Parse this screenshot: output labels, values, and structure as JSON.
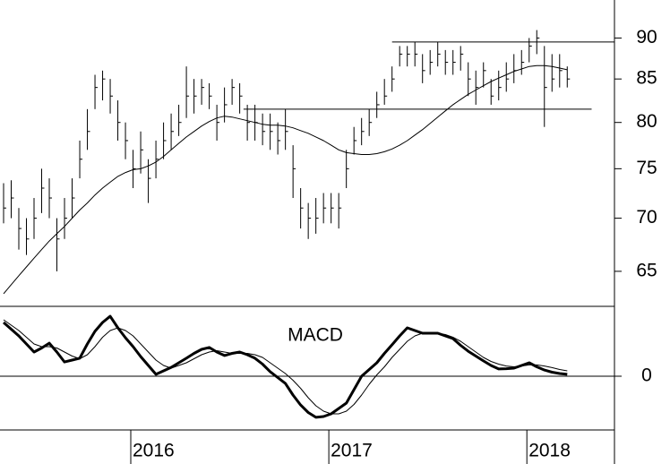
{
  "chart_data": [
    {
      "type": "ohlc",
      "xlim": [
        -0.47,
        80.2
      ],
      "ylim": [
        61.9,
        94.9
      ],
      "log": true,
      "yticks": [
        65,
        70,
        75,
        80,
        85,
        90
      ],
      "color": "#000000",
      "high": [
        73.5,
        73.8,
        71,
        70,
        72,
        75,
        74,
        70,
        72,
        74,
        78,
        81.5,
        85.5,
        86,
        85,
        82.5,
        80,
        77,
        79,
        76,
        78,
        80,
        81,
        82,
        86.5,
        85,
        85,
        84.5,
        82,
        84,
        85,
        84.5,
        82,
        82,
        81,
        81,
        80,
        81.5,
        77.5,
        73,
        71.5,
        72,
        72.5,
        72.5,
        72.5,
        77,
        79.5,
        80.5,
        81.5,
        83.5,
        85,
        86.5,
        89,
        89,
        89.5,
        88,
        88.5,
        89.5,
        88.5,
        88.5,
        89,
        87,
        86,
        87,
        85,
        86,
        87,
        88,
        88.5,
        90,
        91,
        89,
        88,
        88,
        86.5
      ],
      "low": [
        69.5,
        70,
        67,
        66.5,
        68,
        70.5,
        70,
        65,
        68,
        70,
        74,
        77,
        81.5,
        82.5,
        81,
        78,
        76,
        73,
        74.5,
        71.5,
        74,
        76,
        77,
        78.5,
        80.5,
        81,
        82,
        81.5,
        78,
        80,
        82,
        81,
        78,
        78,
        77.5,
        77,
        76.5,
        77,
        72,
        69,
        68,
        68.5,
        69.5,
        69.5,
        69,
        73,
        76.5,
        77.5,
        78.5,
        80.5,
        82,
        83.5,
        86.5,
        86.5,
        86.5,
        84.5,
        85.5,
        86.5,
        85.5,
        85.5,
        86,
        83,
        82,
        84,
        82,
        82.5,
        83.5,
        84.5,
        85.5,
        87,
        88,
        79.5,
        83.5,
        84,
        84
      ],
      "close": [
        71,
        72,
        69,
        68,
        70,
        73,
        72,
        68,
        70,
        72,
        76,
        79,
        84,
        85,
        83,
        80,
        78,
        75,
        77,
        74,
        76,
        78,
        79,
        80,
        83,
        83,
        84,
        83,
        80,
        82,
        84,
        83,
        80,
        80,
        79,
        79,
        78,
        79,
        75,
        71,
        70,
        70,
        71,
        71,
        71,
        75,
        78,
        79,
        80,
        82,
        83,
        85,
        88,
        88,
        88,
        86,
        87,
        88,
        87,
        87,
        88,
        85,
        84,
        86,
        83,
        84,
        85,
        86,
        87,
        89,
        90,
        84,
        85,
        86,
        85
      ],
      "ma": {
        "color": "#000000",
        "values": [
          63,
          63.8,
          64.6,
          65.4,
          66.2,
          67,
          67.8,
          68.5,
          69.2,
          70,
          70.8,
          71.5,
          72.3,
          73,
          73.6,
          74.2,
          74.6,
          74.9,
          75,
          75.3,
          75.7,
          76.3,
          77,
          77.7,
          78.4,
          79,
          79.6,
          80.1,
          80.5,
          80.7,
          80.6,
          80.4,
          80.2,
          80,
          79.8,
          79.7,
          79.7,
          79.6,
          79.4,
          79.1,
          78.8,
          78.4,
          78,
          77.5,
          77,
          76.7,
          76.6,
          76.5,
          76.5,
          76.6,
          76.8,
          77.1,
          77.5,
          78,
          78.6,
          79.2,
          79.9,
          80.6,
          81.3,
          82,
          82.6,
          83.2,
          83.7,
          84.2,
          84.7,
          85.1,
          85.5,
          85.9,
          86.2,
          86.5,
          86.6,
          86.6,
          86.5,
          86.3,
          86.1
        ]
      },
      "levels": [
        {
          "value": 89.5,
          "from": 51,
          "to": 80.2
        },
        {
          "value": 81.5,
          "from": 31.5,
          "to": 77.2
        }
      ]
    },
    {
      "type": "line",
      "annotation": "MACD",
      "xlim": [
        -0.47,
        80.2
      ],
      "ylim": [
        -2,
        2.6
      ],
      "yticks": [
        0
      ],
      "xticks": [
        {
          "value": 16.7,
          "label": "2016"
        },
        {
          "value": 42.7,
          "label": "2017"
        },
        {
          "value": 68.7,
          "label": "2018"
        }
      ],
      "series": [
        {
          "color": "#000000",
          "width": 3,
          "values": [
            2.0,
            1.75,
            1.5,
            1.2,
            0.9,
            1.05,
            1.23,
            0.9,
            0.53,
            0.6,
            0.67,
            1.2,
            1.67,
            2.0,
            2.23,
            1.8,
            1.43,
            1.1,
            0.73,
            0.4,
            0.07,
            0.2,
            0.33,
            0.5,
            0.67,
            0.85,
            1.0,
            1.07,
            0.9,
            0.77,
            0.85,
            0.9,
            0.8,
            0.67,
            0.45,
            0.17,
            -0.05,
            -0.27,
            -0.7,
            -1.07,
            -1.35,
            -1.53,
            -1.5,
            -1.4,
            -1.2,
            -1.0,
            -0.5,
            0,
            0.25,
            0.5,
            0.85,
            1.17,
            1.5,
            1.8,
            1.7,
            1.6,
            1.6,
            1.6,
            1.5,
            1.4,
            1.15,
            0.93,
            0.75,
            0.57,
            0.4,
            0.27,
            0.28,
            0.3,
            0.4,
            0.5,
            0.35,
            0.23,
            0.15,
            0.1,
            0.07
          ]
        },
        {
          "color": "#000000",
          "width": 1,
          "values": [
            2.1,
            1.9,
            1.7,
            1.45,
            1.2,
            1.1,
            1.1,
            1.05,
            0.9,
            0.75,
            0.65,
            0.8,
            1.1,
            1.45,
            1.7,
            1.8,
            1.7,
            1.5,
            1.2,
            0.9,
            0.6,
            0.4,
            0.3,
            0.4,
            0.5,
            0.65,
            0.8,
            0.9,
            0.95,
            0.9,
            0.85,
            0.85,
            0.85,
            0.8,
            0.7,
            0.5,
            0.3,
            0.1,
            -0.15,
            -0.45,
            -0.8,
            -1.1,
            -1.3,
            -1.4,
            -1.4,
            -1.3,
            -1.05,
            -0.7,
            -0.3,
            0.05,
            0.35,
            0.7,
            1.0,
            1.3,
            1.5,
            1.6,
            1.62,
            1.6,
            1.55,
            1.45,
            1.3,
            1.1,
            0.9,
            0.7,
            0.55,
            0.45,
            0.38,
            0.35,
            0.38,
            0.42,
            0.42,
            0.38,
            0.32,
            0.25,
            0.2
          ]
        }
      ]
    }
  ]
}
